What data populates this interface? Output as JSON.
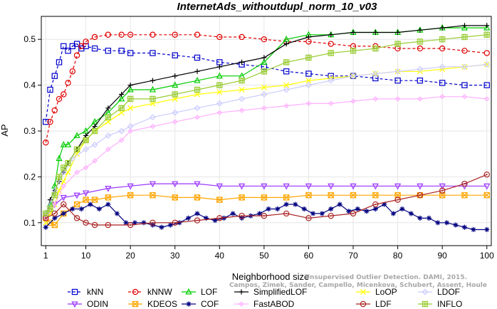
{
  "chart_data": {
    "type": "line",
    "title": "InternetAds_withoutdupl_norm_10_v03",
    "xlabel": "Neighborhood size",
    "ylabel": "AP",
    "xlim": [
      0,
      101
    ],
    "ylim": [
      0.05,
      0.55
    ],
    "xticks": [
      1,
      10,
      20,
      30,
      40,
      50,
      60,
      70,
      80,
      90,
      100
    ],
    "yticks": [
      0.1,
      0.2,
      0.3,
      0.4,
      0.5
    ],
    "grid": true,
    "legend_position": "bottom",
    "watermark": [
      "Unsupervised Outlier Detection. DAMI, 2015.",
      "Campos, Zimek, Sander, Campello, Micenkova, Schubert, Assent, Houle"
    ],
    "series": [
      {
        "name": "kNN",
        "color": "#0000cc",
        "marker": "square",
        "dash": "4,3",
        "x": [
          1,
          2,
          3,
          4,
          5,
          6,
          7,
          8,
          9,
          10,
          12,
          15,
          18,
          20,
          25,
          30,
          35,
          40,
          45,
          50,
          55,
          60,
          65,
          70,
          75,
          80,
          85,
          90,
          95,
          100
        ],
        "y": [
          0.32,
          0.39,
          0.42,
          0.45,
          0.485,
          0.475,
          0.485,
          0.49,
          0.48,
          0.485,
          0.48,
          0.475,
          0.475,
          0.47,
          0.47,
          0.465,
          0.46,
          0.45,
          0.445,
          0.44,
          0.43,
          0.425,
          0.42,
          0.42,
          0.415,
          0.41,
          0.41,
          0.405,
          0.4,
          0.4
        ]
      },
      {
        "name": "kNNW",
        "color": "#e00000",
        "marker": "circle",
        "dash": "4,3",
        "x": [
          1,
          2,
          3,
          4,
          5,
          6,
          7,
          8,
          9,
          10,
          12,
          15,
          18,
          20,
          25,
          30,
          35,
          40,
          45,
          50,
          55,
          60,
          65,
          70,
          75,
          80,
          85,
          90,
          95,
          100
        ],
        "y": [
          0.275,
          0.32,
          0.345,
          0.37,
          0.38,
          0.405,
          0.43,
          0.465,
          0.485,
          0.495,
          0.505,
          0.51,
          0.51,
          0.51,
          0.51,
          0.51,
          0.51,
          0.505,
          0.505,
          0.5,
          0.495,
          0.495,
          0.49,
          0.485,
          0.485,
          0.48,
          0.48,
          0.48,
          0.475,
          0.47
        ]
      },
      {
        "name": "LOF",
        "color": "#00cc00",
        "marker": "triangle-up",
        "dash": "",
        "x": [
          1,
          2,
          3,
          4,
          5,
          6,
          8,
          10,
          12,
          15,
          18,
          20,
          25,
          30,
          35,
          40,
          45,
          50,
          55,
          60,
          65,
          70,
          75,
          80,
          85,
          90,
          95,
          100
        ],
        "y": [
          0.12,
          0.14,
          0.18,
          0.24,
          0.27,
          0.27,
          0.29,
          0.3,
          0.32,
          0.34,
          0.37,
          0.39,
          0.39,
          0.4,
          0.41,
          0.42,
          0.42,
          0.45,
          0.5,
          0.51,
          0.51,
          0.515,
          0.515,
          0.515,
          0.52,
          0.525,
          0.525,
          0.525
        ]
      },
      {
        "name": "SimplifiedLOF",
        "color": "#000000",
        "marker": "plus",
        "dash": "",
        "x": [
          1,
          2,
          3,
          4,
          5,
          6,
          8,
          10,
          12,
          15,
          18,
          20,
          25,
          30,
          35,
          40,
          45,
          50,
          55,
          60,
          65,
          70,
          75,
          80,
          85,
          90,
          95,
          100
        ],
        "y": [
          0.11,
          0.15,
          0.17,
          0.19,
          0.21,
          0.23,
          0.26,
          0.29,
          0.31,
          0.35,
          0.38,
          0.4,
          0.41,
          0.42,
          0.43,
          0.44,
          0.45,
          0.46,
          0.49,
          0.505,
          0.51,
          0.515,
          0.515,
          0.515,
          0.52,
          0.525,
          0.53,
          0.53
        ]
      },
      {
        "name": "LoOP",
        "color": "#ffff00",
        "marker": "x",
        "dash": "",
        "x": [
          1,
          2,
          3,
          4,
          5,
          6,
          8,
          10,
          12,
          15,
          18,
          20,
          25,
          30,
          35,
          40,
          45,
          50,
          55,
          60,
          65,
          70,
          75,
          80,
          85,
          90,
          95,
          100
        ],
        "y": [
          0.1,
          0.12,
          0.14,
          0.17,
          0.19,
          0.21,
          0.25,
          0.28,
          0.3,
          0.32,
          0.34,
          0.35,
          0.36,
          0.37,
          0.38,
          0.385,
          0.39,
          0.395,
          0.4,
          0.41,
          0.415,
          0.42,
          0.425,
          0.43,
          0.43,
          0.435,
          0.44,
          0.445
        ]
      },
      {
        "name": "LDOF",
        "color": "#ccccff",
        "marker": "diamond",
        "dash": "",
        "x": [
          1,
          3,
          5,
          7,
          10,
          12,
          15,
          18,
          20,
          25,
          30,
          35,
          40,
          45,
          50,
          55,
          60,
          65,
          70,
          75,
          80,
          85,
          90,
          95,
          100
        ],
        "y": [
          0.12,
          0.17,
          0.21,
          0.24,
          0.26,
          0.27,
          0.29,
          0.3,
          0.31,
          0.33,
          0.34,
          0.35,
          0.36,
          0.37,
          0.38,
          0.39,
          0.4,
          0.41,
          0.42,
          0.425,
          0.43,
          0.435,
          0.44,
          0.44,
          0.445
        ]
      },
      {
        "name": "ODIN",
        "color": "#9933ff",
        "marker": "triangle-down",
        "dash": "",
        "x": [
          1,
          3,
          5,
          8,
          10,
          15,
          20,
          25,
          30,
          35,
          40,
          45,
          50,
          55,
          60,
          65,
          70,
          75,
          80,
          85,
          90,
          95,
          100
        ],
        "y": [
          0.11,
          0.14,
          0.155,
          0.16,
          0.165,
          0.175,
          0.18,
          0.185,
          0.185,
          0.185,
          0.18,
          0.18,
          0.18,
          0.18,
          0.18,
          0.18,
          0.18,
          0.18,
          0.18,
          0.18,
          0.18,
          0.18,
          0.18
        ]
      },
      {
        "name": "KDEOS",
        "color": "#ffa500",
        "marker": "square-x",
        "dash": "",
        "x": [
          1,
          2,
          3,
          5,
          8,
          10,
          12,
          15,
          20,
          25,
          30,
          35,
          40,
          45,
          50,
          55,
          60,
          65,
          70,
          75,
          80,
          85,
          90,
          95,
          100
        ],
        "y": [
          0.11,
          0.1,
          0.095,
          0.12,
          0.14,
          0.15,
          0.15,
          0.155,
          0.16,
          0.16,
          0.155,
          0.155,
          0.15,
          0.155,
          0.155,
          0.155,
          0.16,
          0.16,
          0.16,
          0.16,
          0.16,
          0.16,
          0.16,
          0.16,
          0.16
        ]
      },
      {
        "name": "COF",
        "color": "#000080",
        "marker": "asterisk",
        "dash": "",
        "x": [
          1,
          3,
          5,
          7,
          9,
          11,
          13,
          15,
          17,
          19,
          21,
          23,
          25,
          27,
          29,
          31,
          33,
          35,
          37,
          39,
          41,
          43,
          45,
          47,
          49,
          51,
          53,
          55,
          57,
          59,
          61,
          63,
          65,
          67,
          69,
          71,
          73,
          75,
          77,
          79,
          81,
          83,
          85,
          87,
          89,
          91,
          93,
          95,
          97,
          100
        ],
        "y": [
          0.09,
          0.11,
          0.12,
          0.13,
          0.13,
          0.14,
          0.13,
          0.14,
          0.12,
          0.1,
          0.1,
          0.1,
          0.095,
          0.09,
          0.095,
          0.1,
          0.11,
          0.12,
          0.11,
          0.105,
          0.11,
          0.12,
          0.11,
          0.115,
          0.12,
          0.13,
          0.13,
          0.14,
          0.14,
          0.13,
          0.12,
          0.12,
          0.13,
          0.14,
          0.125,
          0.13,
          0.125,
          0.13,
          0.14,
          0.12,
          0.13,
          0.12,
          0.11,
          0.11,
          0.1,
          0.1,
          0.095,
          0.09,
          0.085,
          0.085
        ]
      },
      {
        "name": "FastABOD",
        "color": "#ffb0ff",
        "marker": "diamond-small",
        "dash": "",
        "x": [
          1,
          3,
          5,
          8,
          10,
          12,
          15,
          18,
          20,
          25,
          30,
          35,
          40,
          45,
          50,
          55,
          60,
          65,
          70,
          75,
          80,
          85,
          90,
          95,
          100
        ],
        "y": [
          0.11,
          0.14,
          0.18,
          0.21,
          0.22,
          0.235,
          0.26,
          0.28,
          0.3,
          0.31,
          0.32,
          0.33,
          0.34,
          0.345,
          0.35,
          0.355,
          0.36,
          0.36,
          0.365,
          0.37,
          0.37,
          0.37,
          0.375,
          0.375,
          0.37
        ]
      },
      {
        "name": "LDF",
        "color": "#aa2222",
        "marker": "circle-dot",
        "dash": "",
        "x": [
          1,
          3,
          5,
          8,
          10,
          12,
          15,
          20,
          25,
          30,
          35,
          40,
          45,
          50,
          55,
          60,
          65,
          70,
          75,
          80,
          85,
          90,
          95,
          100
        ],
        "y": [
          0.11,
          0.12,
          0.14,
          0.11,
          0.1,
          0.095,
          0.095,
          0.095,
          0.1,
          0.1,
          0.105,
          0.11,
          0.115,
          0.115,
          0.12,
          0.11,
          0.115,
          0.12,
          0.14,
          0.15,
          0.16,
          0.17,
          0.185,
          0.205
        ]
      },
      {
        "name": "INFLO",
        "color": "#99cc33",
        "marker": "square-hash",
        "dash": "",
        "x": [
          1,
          2,
          3,
          4,
          5,
          6,
          8,
          10,
          12,
          15,
          18,
          20,
          25,
          30,
          35,
          40,
          45,
          50,
          55,
          60,
          65,
          70,
          75,
          80,
          85,
          90,
          95,
          100
        ],
        "y": [
          0.12,
          0.13,
          0.16,
          0.2,
          0.22,
          0.23,
          0.26,
          0.28,
          0.3,
          0.33,
          0.35,
          0.37,
          0.37,
          0.38,
          0.39,
          0.4,
          0.41,
          0.43,
          0.45,
          0.46,
          0.47,
          0.475,
          0.48,
          0.49,
          0.495,
          0.5,
          0.505,
          0.51
        ]
      }
    ]
  }
}
